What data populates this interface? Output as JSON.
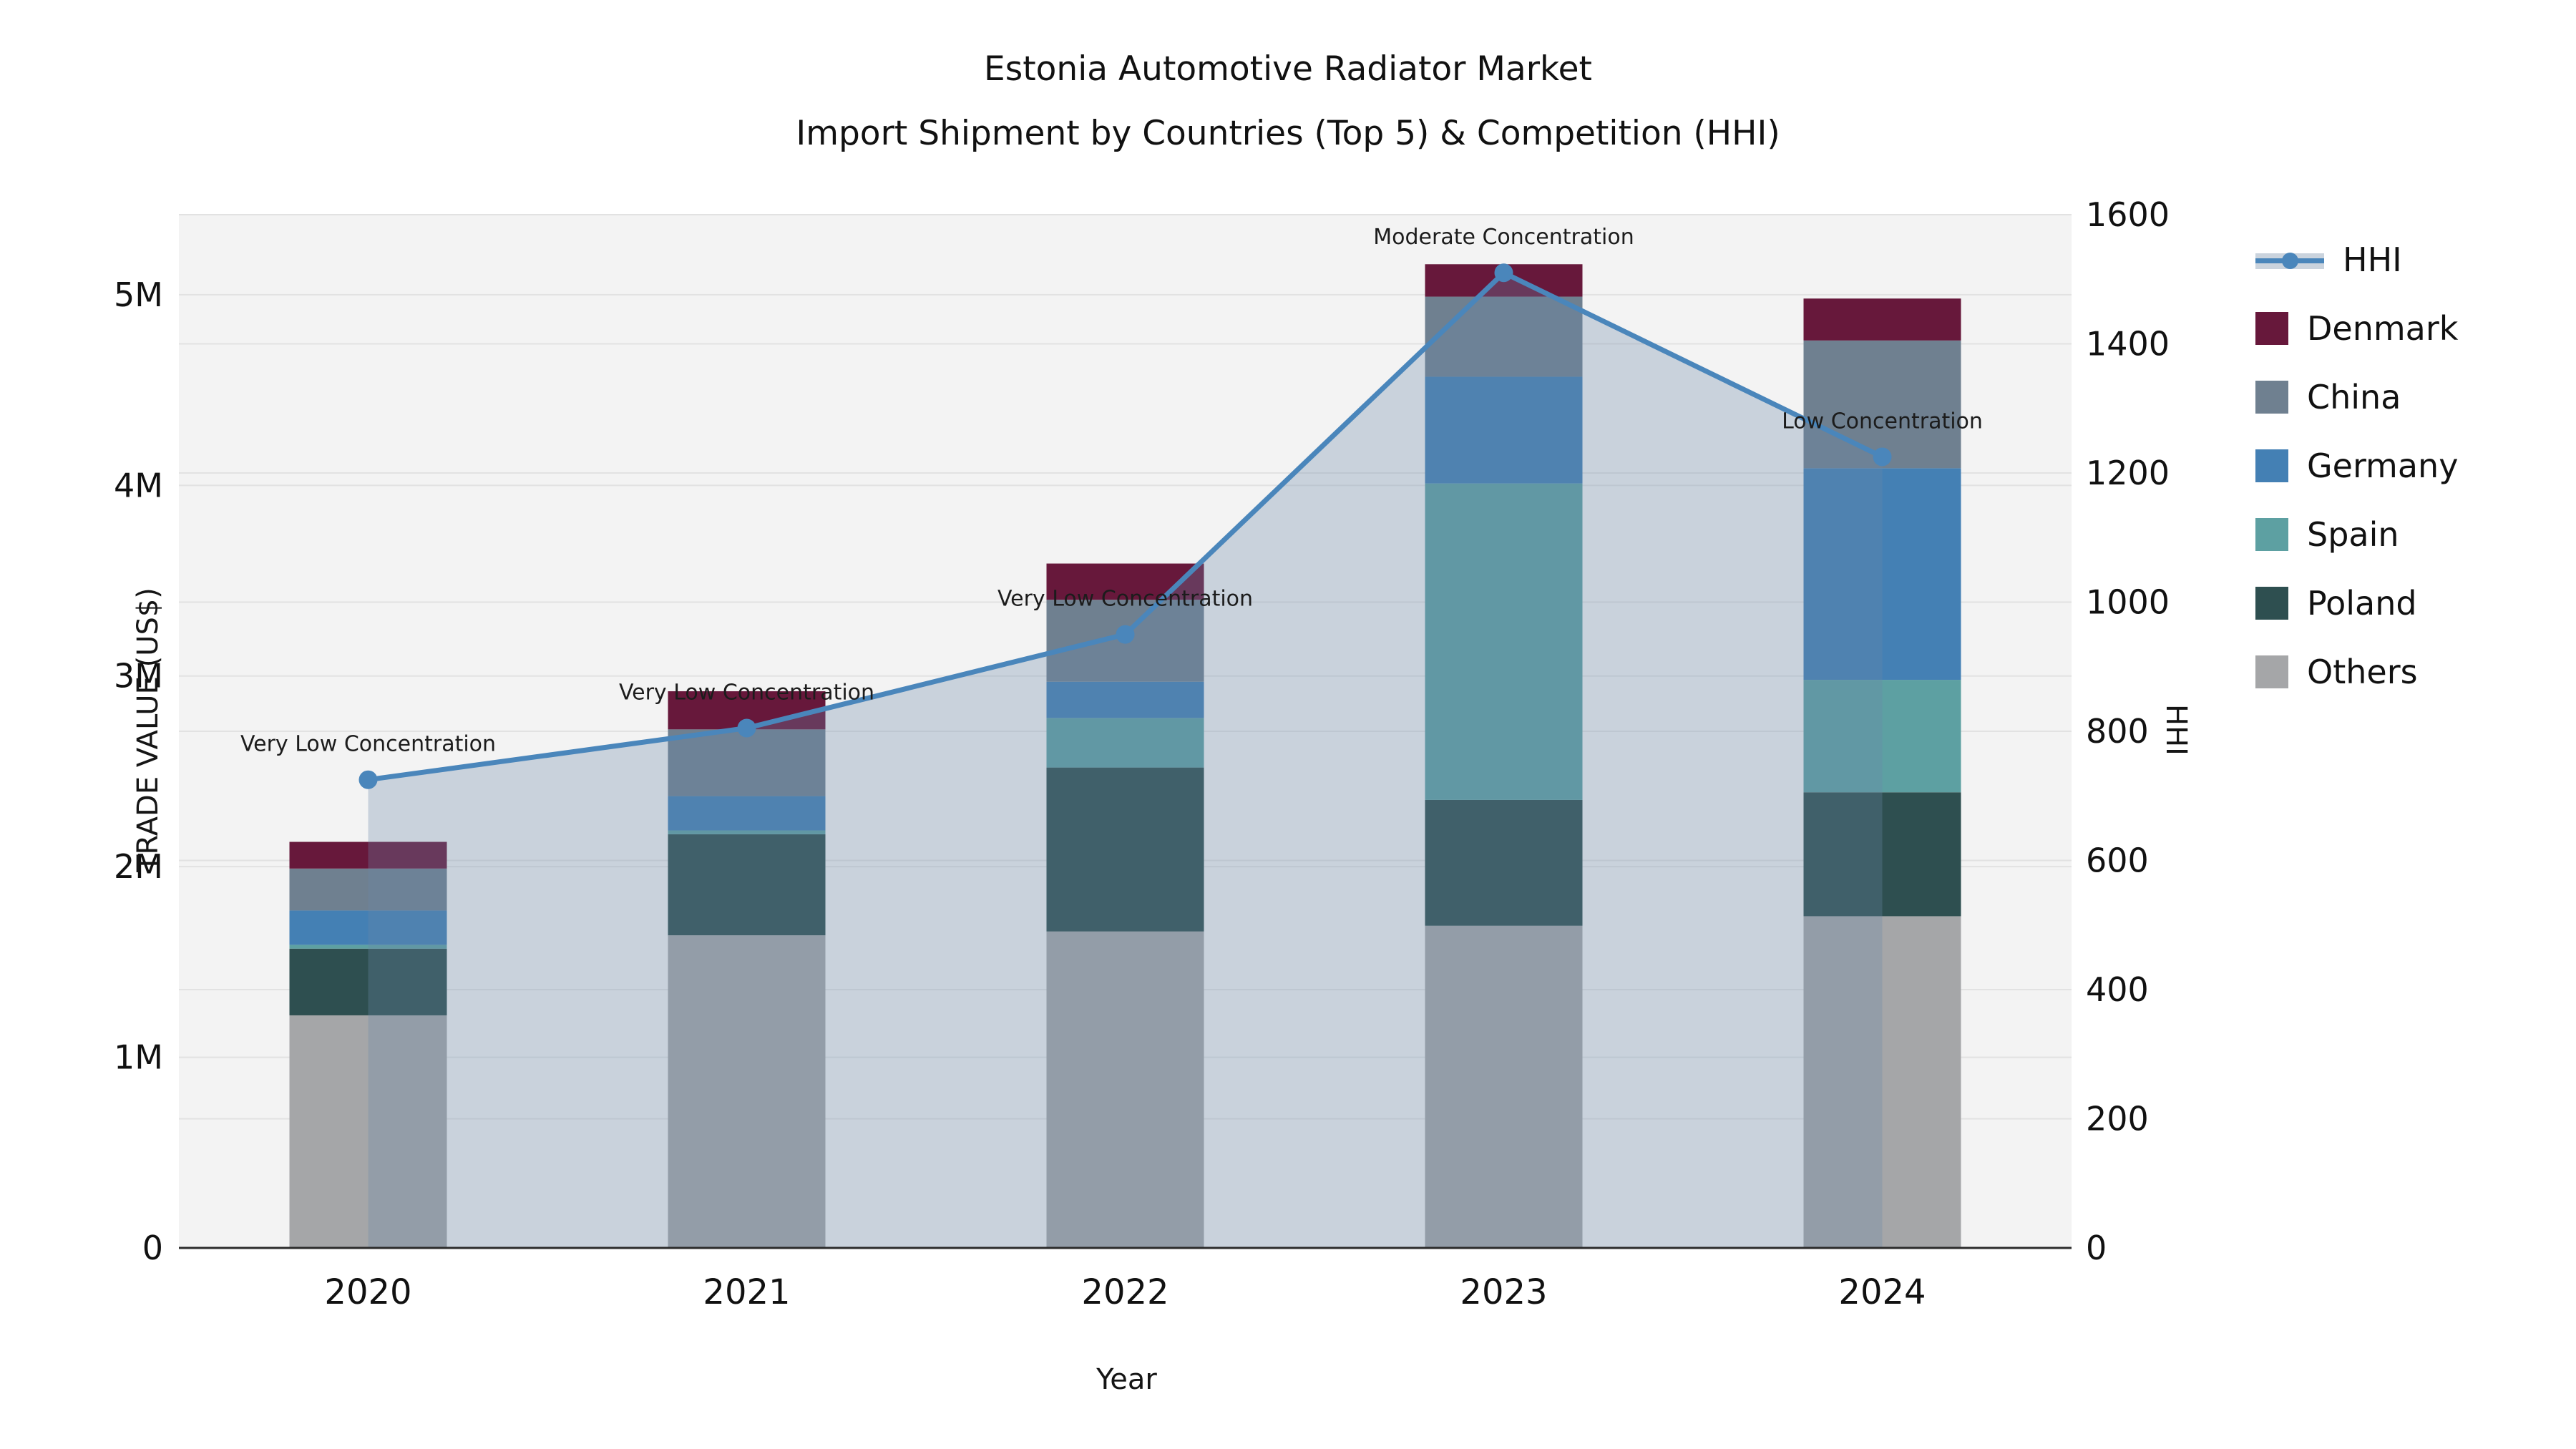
{
  "title": {
    "line1": "Estonia Automotive Radiator Market",
    "line2": "Import Shipment by Countries (Top 5) & Competition (HHI)"
  },
  "axes": {
    "y_left_label": "TRADE VALUE (US$)",
    "y_right_label": "HHI",
    "x_label": "Year"
  },
  "legend": {
    "position": "right",
    "items": [
      {
        "id": "hhi",
        "label": "HHI",
        "type": "line",
        "color": "#4a86bb"
      },
      {
        "id": "denmark",
        "label": "Denmark",
        "type": "box",
        "color": "#67183b"
      },
      {
        "id": "china",
        "label": "China",
        "type": "box",
        "color": "#6f8090"
      },
      {
        "id": "germany",
        "label": "Germany",
        "type": "box",
        "color": "#4480b4"
      },
      {
        "id": "spain",
        "label": "Spain",
        "type": "box",
        "color": "#5da0a2"
      },
      {
        "id": "poland",
        "label": "Poland",
        "type": "box",
        "color": "#2e4f50"
      },
      {
        "id": "others",
        "label": "Others",
        "type": "box",
        "color": "#a5a6a8"
      }
    ]
  },
  "colors": {
    "plot_background": "#f3f3f3",
    "page_background": "#ffffff",
    "gridline": "#e2e2e2",
    "axis_line": "#2b2b2b",
    "text": "#151515",
    "hhi_line": "#4a86bb",
    "hhi_fill": "rgba(105,135,170,0.30)"
  },
  "chart_data": {
    "type": "bar",
    "subtype": "stacked-bars-with-line-overlay",
    "categories": [
      "2020",
      "2021",
      "2022",
      "2023",
      "2024"
    ],
    "bar_unit": "US$",
    "bar_stack_order_bottom_to_top": [
      "Others",
      "Poland",
      "Spain",
      "Germany",
      "China",
      "Denmark"
    ],
    "series": [
      {
        "name": "Others",
        "color": "#a5a6a8",
        "values": [
          1220000,
          1640000,
          1660000,
          1690000,
          1740000
        ]
      },
      {
        "name": "Poland",
        "color": "#2e4f50",
        "values": [
          350000,
          530000,
          860000,
          660000,
          650000
        ]
      },
      {
        "name": "Spain",
        "color": "#5da0a2",
        "values": [
          20000,
          20000,
          260000,
          1660000,
          590000
        ]
      },
      {
        "name": "Germany",
        "color": "#4480b4",
        "values": [
          180000,
          180000,
          190000,
          560000,
          1110000
        ]
      },
      {
        "name": "China",
        "color": "#6f8090",
        "values": [
          220000,
          350000,
          430000,
          420000,
          670000
        ]
      },
      {
        "name": "Denmark",
        "color": "#67183b",
        "values": [
          140000,
          200000,
          190000,
          170000,
          220000
        ]
      }
    ],
    "bar_totals": [
      2130000,
      2920000,
      3590000,
      5160000,
      4980000
    ],
    "line_series": {
      "name": "HHI",
      "axis": "right",
      "color": "#4a86bb",
      "fill_under_line": true,
      "values": [
        725,
        805,
        950,
        1510,
        1225
      ]
    },
    "annotations": [
      {
        "category": "2020",
        "text": "Very Low Concentration"
      },
      {
        "category": "2021",
        "text": "Very Low Concentration"
      },
      {
        "category": "2022",
        "text": "Very Low Concentration"
      },
      {
        "category": "2023",
        "text": "Moderate Concentration"
      },
      {
        "category": "2024",
        "text": "Low Concentration"
      }
    ],
    "xlabel": "Year",
    "ylabel_left": "TRADE VALUE (US$)",
    "ylabel_right": "HHI",
    "y_left": {
      "max": 5420000,
      "ticks": [
        {
          "value": 0,
          "label": "0"
        },
        {
          "value": 1000000,
          "label": "1M"
        },
        {
          "value": 2000000,
          "label": "2M"
        },
        {
          "value": 3000000,
          "label": "3M"
        },
        {
          "value": 4000000,
          "label": "4M"
        },
        {
          "value": 5000000,
          "label": "5M"
        }
      ]
    },
    "y_right": {
      "max": 1600,
      "ticks": [
        0,
        200,
        400,
        600,
        800,
        1000,
        1200,
        1400,
        1600
      ]
    },
    "grid": true,
    "legend_position": "right"
  }
}
